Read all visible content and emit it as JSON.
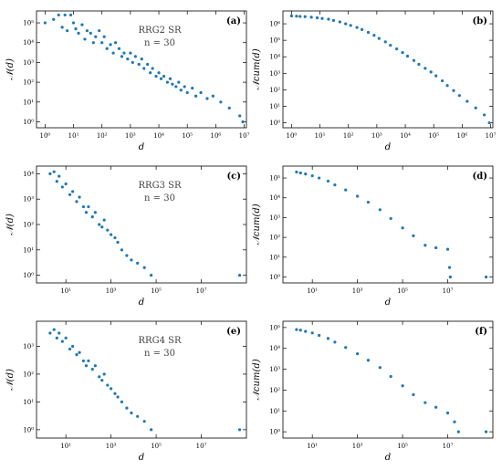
{
  "colors": {
    "marker": "#1f77b4",
    "axis": "#000000"
  },
  "chart_data": [
    {
      "type": "scatter",
      "panel": "(a)",
      "annotation_lines": [
        "RRG2 SR",
        "n = 30"
      ],
      "xlabel": "d",
      "ylabel": "𝒩(d)",
      "xscale": "log",
      "yscale": "log",
      "xlim": [
        0.5,
        12000000.0
      ],
      "ylim": [
        0.5,
        400000.0
      ],
      "xticks": [
        1,
        10,
        100,
        1000,
        10000,
        100000,
        1000000,
        10000000
      ],
      "xtick_labels": [
        "10⁰",
        "10¹",
        "10²",
        "10³",
        "10⁴",
        "10⁵",
        "10⁶",
        "10⁷"
      ],
      "yticks": [
        1,
        10,
        100,
        1000,
        10000,
        100000
      ],
      "ytick_labels": [
        "10⁰",
        "10¹",
        "10²",
        "10³",
        "10⁴",
        "10⁵"
      ],
      "points": [
        [
          1,
          100000
        ],
        [
          2,
          150000
        ],
        [
          3,
          250000
        ],
        [
          5,
          250000
        ],
        [
          8,
          250000
        ],
        [
          4,
          60000
        ],
        [
          6,
          40000
        ],
        [
          10,
          100000
        ],
        [
          12,
          50000
        ],
        [
          15,
          30000
        ],
        [
          20,
          80000
        ],
        [
          25,
          15000
        ],
        [
          30,
          40000
        ],
        [
          40,
          30000
        ],
        [
          50,
          10000
        ],
        [
          60,
          20000
        ],
        [
          80,
          40000
        ],
        [
          100,
          10000
        ],
        [
          120,
          20000
        ],
        [
          150,
          5000
        ],
        [
          200,
          8000
        ],
        [
          250,
          3000
        ],
        [
          300,
          10000
        ],
        [
          400,
          5000
        ],
        [
          500,
          2000
        ],
        [
          600,
          3000
        ],
        [
          800,
          1500
        ],
        [
          1000,
          3000
        ],
        [
          1200,
          1000
        ],
        [
          1500,
          2000
        ],
        [
          2000,
          800
        ],
        [
          2500,
          1500
        ],
        [
          3000,
          500
        ],
        [
          4000,
          800
        ],
        [
          5000,
          300
        ],
        [
          6000,
          500
        ],
        [
          8000,
          200
        ],
        [
          10000,
          300
        ],
        [
          12000,
          150
        ],
        [
          15000,
          200
        ],
        [
          20000,
          100
        ],
        [
          25000,
          150
        ],
        [
          30000,
          80
        ],
        [
          40000,
          60
        ],
        [
          50000,
          100
        ],
        [
          60000,
          40
        ],
        [
          80000,
          60
        ],
        [
          100000,
          30
        ],
        [
          150000,
          50
        ],
        [
          200000,
          20
        ],
        [
          300000,
          30
        ],
        [
          500000,
          15
        ],
        [
          800000,
          20
        ],
        [
          1500000,
          10
        ],
        [
          3000000,
          5
        ],
        [
          7000000,
          2
        ],
        [
          9000000,
          1
        ]
      ],
      "rank_ylim": null
    },
    {
      "type": "scatter",
      "panel": "(b)",
      "xlabel": "d",
      "ylabel": "𝒩cum(d)",
      "xscale": "log",
      "yscale": "log",
      "xlim": [
        0.5,
        12000000.0
      ],
      "ylim": [
        0.5,
        6000000.0
      ],
      "xticks": [
        1,
        10,
        100,
        1000,
        10000,
        100000,
        1000000,
        10000000
      ],
      "xtick_labels": [
        "10⁰",
        "10¹",
        "10²",
        "10³",
        "10⁴",
        "10⁵",
        "10⁶",
        "10⁷"
      ],
      "yticks": [
        1,
        10,
        100,
        1000,
        10000,
        100000,
        1000000
      ],
      "ytick_labels": [
        "10⁰",
        "10¹",
        "10²",
        "10³",
        "10⁴",
        "10⁵",
        "10⁶"
      ],
      "points": [
        [
          1,
          3000000
        ],
        [
          1.5,
          2900000
        ],
        [
          2,
          2800000
        ],
        [
          3,
          2700000
        ],
        [
          5,
          2500000
        ],
        [
          8,
          2300000
        ],
        [
          12,
          2100000
        ],
        [
          20,
          1900000
        ],
        [
          30,
          1600000
        ],
        [
          50,
          1300000
        ],
        [
          80,
          1000000
        ],
        [
          120,
          800000
        ],
        [
          200,
          600000
        ],
        [
          300,
          450000
        ],
        [
          500,
          300000
        ],
        [
          800,
          200000
        ],
        [
          1200,
          130000
        ],
        [
          2000,
          80000
        ],
        [
          3000,
          50000
        ],
        [
          5000,
          30000
        ],
        [
          8000,
          18000
        ],
        [
          12000,
          11000
        ],
        [
          20000,
          6000
        ],
        [
          30000,
          3500
        ],
        [
          50000,
          2000
        ],
        [
          80000,
          1200
        ],
        [
          120000,
          700
        ],
        [
          200000,
          350
        ],
        [
          300000,
          180
        ],
        [
          500000,
          90
        ],
        [
          800000,
          45
        ],
        [
          1500000,
          20
        ],
        [
          3000000,
          8
        ],
        [
          6000000,
          3
        ],
        [
          9000000,
          1
        ]
      ]
    },
    {
      "type": "scatter",
      "panel": "(c)",
      "annotation_lines": [
        "RRG3 SR",
        "n = 30"
      ],
      "xlabel": "d",
      "ylabel": "𝒩(d)",
      "xscale": "log",
      "yscale": "log",
      "xlim": [
        0.5,
        1000000000.0
      ],
      "ylim": [
        0.5,
        20000.0
      ],
      "xticks": [
        10,
        1000,
        100000,
        10000000
      ],
      "xtick_labels": [
        "10¹",
        "10³",
        "10⁵",
        "10⁷"
      ],
      "yticks": [
        1,
        10,
        100,
        1000,
        10000
      ],
      "ytick_labels": [
        "10⁰",
        "10¹",
        "10²",
        "10³",
        "10⁴"
      ],
      "points": [
        [
          2,
          10000
        ],
        [
          3,
          12000
        ],
        [
          4,
          5000
        ],
        [
          5,
          8000
        ],
        [
          7,
          3000
        ],
        [
          10,
          4000
        ],
        [
          15,
          1500
        ],
        [
          20,
          2000
        ],
        [
          30,
          800
        ],
        [
          40,
          1200
        ],
        [
          60,
          500
        ],
        [
          80,
          300
        ],
        [
          100,
          500
        ],
        [
          150,
          200
        ],
        [
          200,
          300
        ],
        [
          300,
          100
        ],
        [
          400,
          80
        ],
        [
          500,
          150
        ],
        [
          700,
          60
        ],
        [
          1000,
          40
        ],
        [
          1500,
          30
        ],
        [
          2000,
          20
        ],
        [
          3000,
          10
        ],
        [
          5000,
          6
        ],
        [
          8000,
          4
        ],
        [
          15000,
          3
        ],
        [
          30000,
          2
        ],
        [
          60000,
          1
        ],
        [
          500000000,
          1
        ]
      ],
      "rank_ylim": null
    },
    {
      "type": "scatter",
      "panel": "(d)",
      "xlabel": "d",
      "ylabel": "𝒩cum(d)",
      "xscale": "log",
      "yscale": "log",
      "xlim": [
        0.5,
        1000000000.0
      ],
      "ylim": [
        0.5,
        400000.0
      ],
      "xticks": [
        10,
        1000,
        100000,
        10000000
      ],
      "xtick_labels": [
        "10¹",
        "10³",
        "10⁵",
        "10⁷"
      ],
      "yticks": [
        1,
        10,
        100,
        1000,
        10000,
        100000
      ],
      "ytick_labels": [
        "10⁰",
        "10¹",
        "10²",
        "10³",
        "10⁴",
        "10⁵"
      ],
      "points": [
        [
          2,
          200000
        ],
        [
          3,
          180000
        ],
        [
          5,
          160000
        ],
        [
          10,
          130000
        ],
        [
          20,
          100000
        ],
        [
          50,
          70000
        ],
        [
          100,
          45000
        ],
        [
          300,
          25000
        ],
        [
          1000,
          12000
        ],
        [
          3000,
          6000
        ],
        [
          10000,
          2500
        ],
        [
          30000,
          900
        ],
        [
          100000,
          300
        ],
        [
          300000,
          120
        ],
        [
          1000000,
          40
        ],
        [
          3000000,
          30
        ],
        [
          10000000,
          25
        ],
        [
          12000000,
          3
        ],
        [
          13000000,
          1
        ],
        [
          500000000,
          1
        ]
      ]
    },
    {
      "type": "scatter",
      "panel": "(e)",
      "annotation_lines": [
        "RRG4 SR",
        "n = 30"
      ],
      "xlabel": "d",
      "ylabel": "𝒩(d)",
      "xscale": "log",
      "yscale": "log",
      "xlim": [
        0.5,
        1000000000.0
      ],
      "ylim": [
        0.5,
        8000.0
      ],
      "xticks": [
        10,
        1000,
        100000,
        10000000
      ],
      "xtick_labels": [
        "10¹",
        "10³",
        "10⁵",
        "10⁷"
      ],
      "yticks": [
        1,
        10,
        100,
        1000
      ],
      "ytick_labels": [
        "10⁰",
        "10¹",
        "10²",
        "10³"
      ],
      "points": [
        [
          2,
          3000
        ],
        [
          3,
          4000
        ],
        [
          4,
          2000
        ],
        [
          5,
          3000
        ],
        [
          7,
          1500
        ],
        [
          10,
          2000
        ],
        [
          15,
          800
        ],
        [
          20,
          1000
        ],
        [
          30,
          500
        ],
        [
          40,
          600
        ],
        [
          60,
          300
        ],
        [
          80,
          200
        ],
        [
          100,
          300
        ],
        [
          150,
          150
        ],
        [
          200,
          200
        ],
        [
          300,
          80
        ],
        [
          400,
          60
        ],
        [
          500,
          100
        ],
        [
          700,
          40
        ],
        [
          1000,
          30
        ],
        [
          1500,
          20
        ],
        [
          2000,
          15
        ],
        [
          3000,
          10
        ],
        [
          5000,
          6
        ],
        [
          8000,
          4
        ],
        [
          15000,
          3
        ],
        [
          30000,
          2
        ],
        [
          60000,
          1
        ],
        [
          500000000,
          1
        ]
      ],
      "rank_ylim": null
    },
    {
      "type": "scatter",
      "panel": "(f)",
      "xlabel": "d",
      "ylabel": "𝒩cum(d)",
      "xscale": "log",
      "yscale": "log",
      "xlim": [
        0.5,
        1000000000.0
      ],
      "ylim": [
        0.5,
        200000.0
      ],
      "xticks": [
        10,
        1000,
        100000,
        10000000
      ],
      "xtick_labels": [
        "10¹",
        "10³",
        "10⁵",
        "10⁷"
      ],
      "yticks": [
        1,
        10,
        100,
        1000,
        10000,
        100000
      ],
      "ytick_labels": [
        "10⁰",
        "10¹",
        "10²",
        "10³",
        "10⁴",
        "10⁵"
      ],
      "points": [
        [
          2,
          80000
        ],
        [
          3,
          75000
        ],
        [
          5,
          65000
        ],
        [
          10,
          55000
        ],
        [
          20,
          42000
        ],
        [
          50,
          30000
        ],
        [
          100,
          20000
        ],
        [
          300,
          11000
        ],
        [
          1000,
          5500
        ],
        [
          3000,
          2700
        ],
        [
          10000,
          1200
        ],
        [
          30000,
          450
        ],
        [
          100000,
          160
        ],
        [
          300000,
          60
        ],
        [
          1000000,
          25
        ],
        [
          3000000,
          15
        ],
        [
          10000000,
          8
        ],
        [
          20000000,
          3
        ],
        [
          30000000,
          1
        ],
        [
          500000000,
          1
        ]
      ]
    }
  ]
}
